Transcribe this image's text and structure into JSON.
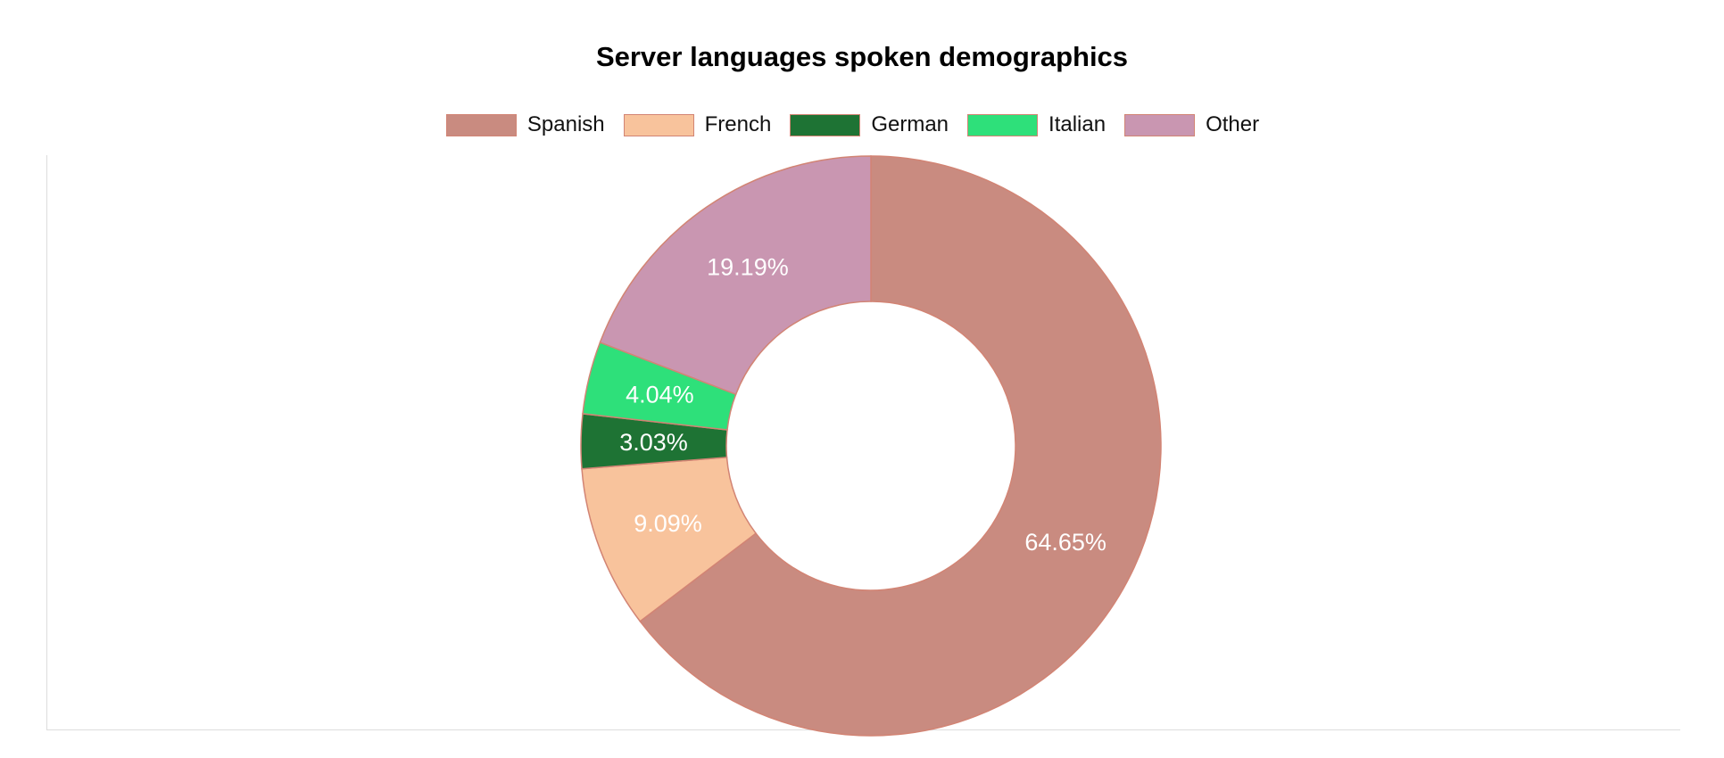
{
  "chart_data": {
    "type": "pie",
    "variant": "doughnut",
    "title": "Server languages spoken demographics",
    "legend_position": "top",
    "labels": [
      "Spanish",
      "French",
      "German",
      "Italian",
      "Other"
    ],
    "values": [
      64.65,
      9.09,
      3.03,
      4.04,
      19.19
    ],
    "value_labels": [
      "64.65%",
      "9.09%",
      "3.03%",
      "4.04%",
      "19.19%"
    ],
    "colors": [
      "#c98b80",
      "#f8c39c",
      "#1e7334",
      "#2ee07a",
      "#c996b1"
    ],
    "border_color": "#d28474"
  }
}
